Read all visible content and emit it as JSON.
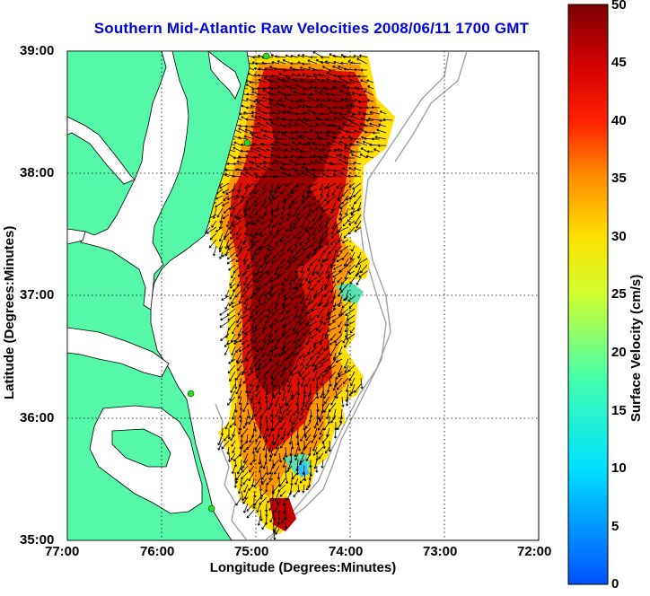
{
  "title": "Southern Mid-Atlantic Raw Velocities 2008/06/11 1700 GMT",
  "axes": {
    "xlabel": "Longitude (Degrees:Minutes)",
    "ylabel": "Latitude (Degrees:Minutes)",
    "x_ticks": [
      "77:00",
      "76:00",
      "75:00",
      "74:00",
      "73:00",
      "72:00"
    ],
    "y_ticks": [
      "39:00",
      "38:00",
      "37:00",
      "36:00",
      "35:00"
    ],
    "lon_range": [
      -77,
      -72
    ],
    "lat_range": [
      35,
      39
    ]
  },
  "colorbar": {
    "label": "Surface Velocity (cm/s)",
    "ticks": [
      "0",
      "5",
      "10",
      "15",
      "20",
      "25",
      "30",
      "35",
      "40",
      "45",
      "50"
    ],
    "range": [
      0,
      50
    ]
  },
  "colors": {
    "land": "#55f7a8",
    "water": "#ffffff",
    "title": "#0000e0",
    "station": "#22dd22",
    "bathymetry": "#9a9a9a"
  },
  "stations": [
    {
      "lon": -74.89,
      "lat": 38.96
    },
    {
      "lon": -75.09,
      "lat": 38.25
    },
    {
      "lon": -75.69,
      "lat": 36.2
    },
    {
      "lon": -75.47,
      "lat": 35.26
    }
  ],
  "icons": {
    "station": "station-marker-icon",
    "vector": "velocity-arrow-icon"
  }
}
